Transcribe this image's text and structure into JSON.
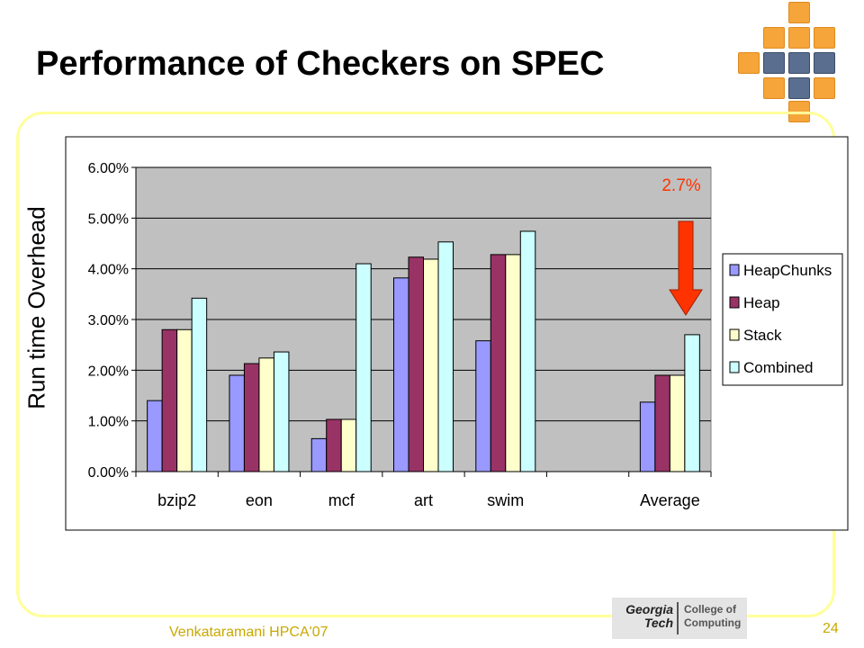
{
  "slide": {
    "title": "Performance of Checkers on SPEC",
    "y_axis_title": "Run time  Overhead",
    "annotation": "2.7%",
    "footer_text": "Venkataramani HPCA'07",
    "page_number": "24",
    "logo": {
      "line1": "Georgia",
      "line2": "Tech",
      "line3": "College of",
      "line4": "Computing"
    }
  },
  "colors": {
    "frame": "#ffff99",
    "plot_bg": "#c0c0c0",
    "arrow": "#ff3300",
    "annotation": "#ff3300",
    "footer": "#c9a800",
    "tile_orange": "#f5a53a"
  },
  "chart_data": {
    "type": "bar",
    "categories": [
      "bzip2",
      "eon",
      "mcf",
      "art",
      "swim",
      "",
      "Average"
    ],
    "series": [
      {
        "name": "HeapChunks",
        "color": "#9999ff",
        "values": [
          1.4,
          1.9,
          0.65,
          3.82,
          2.58,
          null,
          1.37
        ]
      },
      {
        "name": "Heap",
        "color": "#993366",
        "values": [
          2.8,
          2.13,
          1.03,
          4.23,
          4.28,
          null,
          1.9
        ]
      },
      {
        "name": "Stack",
        "color": "#ffffcc",
        "values": [
          2.8,
          2.24,
          1.03,
          4.19,
          4.28,
          null,
          1.9
        ]
      },
      {
        "name": "Combined",
        "color": "#ccffff",
        "values": [
          3.42,
          2.36,
          4.1,
          4.53,
          4.74,
          null,
          2.7
        ]
      }
    ],
    "ylim": [
      0,
      6
    ],
    "yticks": [
      "0.00%",
      "1.00%",
      "2.00%",
      "3.00%",
      "4.00%",
      "5.00%",
      "6.00%"
    ],
    "grid": true,
    "legend_position": "right"
  }
}
